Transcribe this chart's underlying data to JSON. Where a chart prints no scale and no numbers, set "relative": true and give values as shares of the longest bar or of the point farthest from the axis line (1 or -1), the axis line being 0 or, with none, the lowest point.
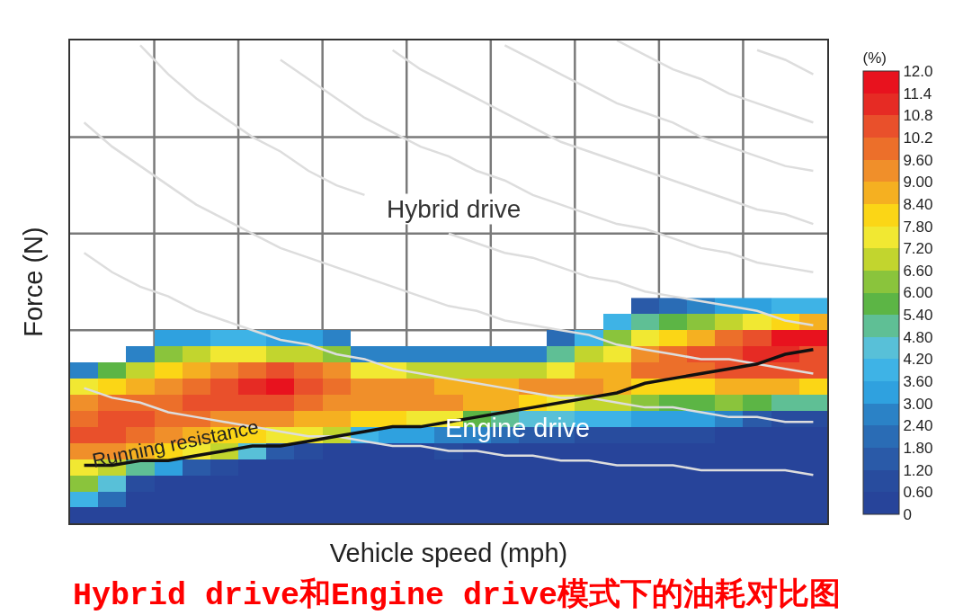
{
  "chart_data": [
    {
      "type": "heatmap",
      "title": "Hybrid drive和Engine drive模式下的油耗对比图",
      "xlabel": "Vehicle speed (mph)",
      "ylabel": "Force (N)",
      "clabel": "(%)",
      "annotations": [
        "Hybrid drive",
        "Engine drive"
      ],
      "grid": true,
      "categories": [
        null,
        null,
        null,
        null,
        null,
        null,
        null,
        null,
        null,
        null,
        null,
        null,
        null,
        null,
        null,
        null,
        null,
        null,
        null,
        null,
        null,
        null,
        null,
        null,
        null,
        null,
        null
      ],
      "y_categories": [
        null,
        null,
        null,
        null,
        null,
        null,
        null,
        null,
        null,
        null,
        null,
        null,
        null,
        null
      ],
      "clim": [
        0,
        12
      ],
      "cticks": [
        0,
        {
          "value": 0.6,
          "label": "0.60"
        },
        {
          "value": 1.2,
          "label": "1.20"
        },
        {
          "value": 1.8,
          "label": "1.80"
        },
        {
          "value": 2.4,
          "label": "2.40"
        },
        {
          "value": 3,
          "label": "3.00"
        },
        {
          "value": 3.6,
          "label": "3.60"
        },
        {
          "value": 4.2,
          "label": "4.20"
        },
        {
          "value": 4.8,
          "label": "4.80"
        },
        {
          "value": 5.4,
          "label": "5.40"
        },
        {
          "value": 6,
          "label": "6.00"
        },
        {
          "value": 6.6,
          "label": "6.60"
        },
        {
          "value": 7.2,
          "label": "7.20"
        },
        {
          "value": 7.8,
          "label": "7.80"
        },
        {
          "value": 8.4,
          "label": "8.40"
        },
        {
          "value": 9,
          "label": "9.00"
        },
        {
          "value": 9.6,
          "label": "9.60"
        },
        10.2,
        10.8,
        11.4,
        {
          "value": 12,
          "label": "12.0"
        }
      ],
      "colors": [
        "#27449a",
        "#284c9e",
        "#2a5aa8",
        "#2a6cb5",
        "#2b82c6",
        "#2fa1df",
        "#3eb3e6",
        "#58c0d8",
        "#5fbf95",
        "#5cb545",
        "#8ac43c",
        "#c2d52e",
        "#f1e832",
        "#fbd616",
        "#f5b021",
        "#f08f2a",
        "#ec6f2a",
        "#e9502b",
        "#e62b24",
        "#e8121e"
      ],
      "cells": [
        [
          null,
          null,
          null,
          null,
          null,
          null,
          null,
          null,
          null,
          null,
          null,
          null,
          null,
          null,
          null,
          null,
          null,
          null,
          null,
          null,
          1.5,
          2.1,
          2.7,
          3.3,
          3.3,
          3.9,
          3.9
        ],
        [
          null,
          null,
          null,
          null,
          null,
          null,
          null,
          null,
          null,
          null,
          null,
          null,
          null,
          null,
          null,
          null,
          null,
          null,
          null,
          3.9,
          5.1,
          5.7,
          6.3,
          6.9,
          7.5,
          8.1,
          8.7
        ],
        [
          null,
          null,
          null,
          3.3,
          3.3,
          3.9,
          3.9,
          3.3,
          3.3,
          2.7,
          null,
          null,
          null,
          null,
          null,
          null,
          null,
          2.1,
          3.9,
          6.3,
          7.5,
          8.1,
          8.7,
          9.9,
          10.5,
          11.7,
          11.7
        ],
        [
          null,
          null,
          2.7,
          6.3,
          6.9,
          7.5,
          7.5,
          6.9,
          6.9,
          6.3,
          2.7,
          2.7,
          2.7,
          2.7,
          2.7,
          2.7,
          2.7,
          5.1,
          6.9,
          7.5,
          9.3,
          9.9,
          10.5,
          10.5,
          11.1,
          11.1,
          10.5
        ],
        [
          2.7,
          5.7,
          6.9,
          8.1,
          8.7,
          9.3,
          9.9,
          10.5,
          9.9,
          9.3,
          7.5,
          7.5,
          6.9,
          6.9,
          6.9,
          6.9,
          6.9,
          7.5,
          8.7,
          8.7,
          9.9,
          9.9,
          9.9,
          10.5,
          10.5,
          10.5,
          10.5
        ],
        [
          7.5,
          8.1,
          8.7,
          9.3,
          9.9,
          10.5,
          11.1,
          11.7,
          10.5,
          9.9,
          9.3,
          9.3,
          9.3,
          8.7,
          8.7,
          8.7,
          9.3,
          9.3,
          9.3,
          8.7,
          8.1,
          8.1,
          8.1,
          8.7,
          8.7,
          8.7,
          8.1
        ],
        [
          9.3,
          9.9,
          9.9,
          9.9,
          10.5,
          10.5,
          10.5,
          10.5,
          9.9,
          9.3,
          9.3,
          9.3,
          9.3,
          9.3,
          8.7,
          8.7,
          8.1,
          7.5,
          6.9,
          6.9,
          6.3,
          5.7,
          5.7,
          6.3,
          5.7,
          5.1,
          5.1
        ],
        [
          9.9,
          10.5,
          10.5,
          9.9,
          9.9,
          9.3,
          9.3,
          9.3,
          8.7,
          8.7,
          8.1,
          8.1,
          7.5,
          7.5,
          5.7,
          5.1,
          4.5,
          4.5,
          3.9,
          3.9,
          3.3,
          3.3,
          3.3,
          2.7,
          1.5,
          0.9,
          0.9
        ],
        [
          10.5,
          10.5,
          9.9,
          9.3,
          8.7,
          8.1,
          8.1,
          7.5,
          7.5,
          6.9,
          3.9,
          3.3,
          3.3,
          2.7,
          2.7,
          2.1,
          1.5,
          1.5,
          0.9,
          0.9,
          0.9,
          0.9,
          0.9,
          0,
          0,
          0,
          0
        ],
        [
          9.3,
          9.3,
          8.7,
          8.1,
          7.5,
          6.9,
          4.5,
          1.5,
          0.9,
          0,
          0,
          0,
          0,
          0.9,
          0,
          0,
          0,
          0,
          0,
          0,
          0,
          0,
          0,
          0,
          0,
          0,
          0
        ],
        [
          7.5,
          6.9,
          5.1,
          3.3,
          1.5,
          0.9,
          0,
          0,
          0,
          0,
          0,
          0,
          0,
          0,
          0,
          0,
          0,
          0,
          0,
          0,
          0,
          0,
          0,
          0,
          0,
          0,
          0
        ],
        [
          6.3,
          4.5,
          0.9,
          0,
          0,
          0,
          0,
          0,
          0,
          0,
          0,
          0,
          0,
          0,
          0,
          0,
          0,
          0,
          0,
          0,
          0,
          0,
          0,
          0,
          0,
          0,
          0
        ],
        [
          3.9,
          2.1,
          0,
          0,
          0,
          0,
          0,
          0,
          0,
          0,
          0,
          0,
          0,
          0,
          0,
          0,
          0,
          0,
          0,
          0,
          0,
          0,
          0,
          0,
          0,
          0,
          0
        ],
        [
          0,
          0,
          0,
          0,
          0,
          0,
          0,
          0,
          0,
          0,
          0,
          0,
          0,
          0,
          0,
          0,
          0,
          0,
          0,
          0,
          0,
          0,
          0,
          0,
          0,
          0,
          0
        ]
      ]
    },
    {
      "type": "line",
      "relative": true,
      "categories": [
        null,
        null,
        null,
        null,
        null,
        null,
        null,
        null,
        null,
        null,
        null,
        null,
        null,
        null,
        null,
        null,
        null,
        null,
        null,
        null,
        null,
        null,
        null,
        null,
        null,
        null,
        null
      ],
      "series": [
        {
          "type": "line",
          "color": "#dddddd",
          "values": [
            0.28,
            0.26,
            0.25,
            0.23,
            0.22,
            0.21,
            0.2,
            0.19,
            0.18,
            0.18,
            0.17,
            0.16,
            0.16,
            0.15,
            0.15,
            0.14,
            0.14,
            0.13,
            0.13,
            0.12,
            0.12,
            0.12,
            0.11,
            0.11,
            0.11,
            0.11,
            0.1
          ]
        },
        {
          "type": "line",
          "color": "#dddddd",
          "values": [
            0.56,
            0.52,
            0.49,
            0.47,
            0.44,
            0.42,
            0.4,
            0.38,
            0.37,
            0.35,
            0.34,
            0.32,
            0.31,
            0.3,
            0.29,
            0.28,
            0.27,
            0.26,
            0.26,
            0.25,
            0.24,
            0.24,
            0.23,
            0.22,
            0.22,
            0.21,
            0.21
          ]
        },
        {
          "type": "line",
          "color": "#dddddd",
          "values": [
            0.83,
            0.78,
            0.74,
            0.7,
            0.66,
            0.63,
            0.6,
            0.57,
            0.55,
            0.53,
            0.51,
            0.49,
            0.47,
            0.45,
            0.44,
            0.42,
            0.41,
            0.4,
            0.39,
            0.37,
            0.36,
            0.35,
            0.34,
            0.34,
            0.33,
            0.32,
            0.31
          ]
        },
        {
          "type": "line",
          "color": "#dddddd",
          "values": [
            null,
            null,
            0.99,
            0.93,
            0.88,
            0.84,
            0.8,
            0.77,
            0.73,
            0.7,
            0.68,
            null,
            null,
            0.6,
            0.58,
            0.56,
            0.55,
            0.53,
            0.51,
            0.5,
            0.48,
            0.47,
            0.46,
            0.45,
            0.44,
            0.42,
            0.41
          ]
        },
        {
          "type": "line",
          "color": "#dddddd",
          "values": [
            null,
            null,
            null,
            null,
            null,
            null,
            null,
            0.96,
            0.92,
            0.88,
            0.84,
            0.81,
            0.78,
            0.76,
            0.73,
            0.71,
            0.68,
            0.66,
            0.64,
            0.62,
            0.61,
            0.59,
            0.57,
            0.56,
            0.54,
            0.53,
            0.52
          ]
        },
        {
          "type": "line",
          "color": "#dddddd",
          "values": [
            null,
            null,
            null,
            null,
            null,
            null,
            null,
            null,
            null,
            null,
            null,
            0.98,
            0.94,
            0.91,
            0.88,
            0.85,
            0.82,
            0.79,
            0.77,
            0.75,
            0.73,
            0.71,
            0.69,
            0.67,
            0.65,
            0.64,
            0.62
          ]
        },
        {
          "type": "line",
          "color": "#dddddd",
          "values": [
            null,
            null,
            null,
            null,
            null,
            null,
            null,
            null,
            null,
            null,
            null,
            null,
            null,
            null,
            null,
            0.99,
            0.96,
            0.93,
            0.9,
            0.87,
            0.85,
            0.83,
            0.8,
            0.78,
            0.76,
            0.74,
            0.73
          ]
        },
        {
          "type": "line",
          "color": "#dddddd",
          "values": [
            null,
            null,
            null,
            null,
            null,
            null,
            null,
            null,
            null,
            null,
            null,
            null,
            null,
            null,
            null,
            null,
            null,
            null,
            null,
            1.0,
            0.97,
            0.94,
            0.92,
            0.89,
            0.87,
            0.85,
            0.83
          ]
        },
        {
          "type": "line",
          "color": "#dddddd",
          "values": [
            null,
            null,
            null,
            null,
            null,
            null,
            null,
            null,
            null,
            null,
            null,
            null,
            null,
            null,
            null,
            null,
            null,
            null,
            null,
            null,
            null,
            null,
            null,
            null,
            0.98,
            0.96,
            0.93
          ]
        },
        {
          "type": "line",
          "name": "Running resistance",
          "color": "#111111",
          "values": [
            0.12,
            0.12,
            0.13,
            0.13,
            0.14,
            0.15,
            0.16,
            0.16,
            0.17,
            0.18,
            0.19,
            0.2,
            0.2,
            0.21,
            0.22,
            0.23,
            0.24,
            0.25,
            0.26,
            0.27,
            0.29,
            0.3,
            0.31,
            0.32,
            0.33,
            0.35,
            0.36
          ]
        }
      ]
    }
  ]
}
